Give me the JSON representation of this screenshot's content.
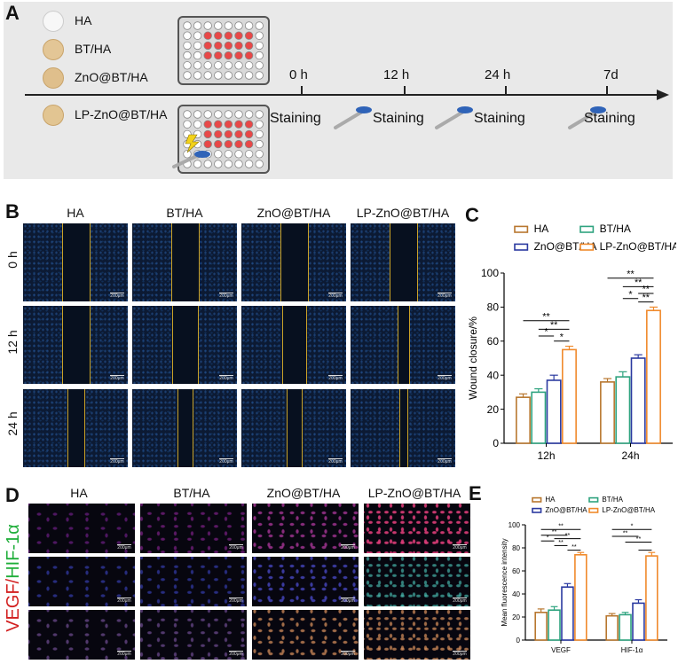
{
  "panel_letters": {
    "a": "A",
    "b": "B",
    "c": "C",
    "d": "D",
    "e": "E"
  },
  "panelA": {
    "materials": [
      {
        "label": "HA",
        "color": "#f4f4f4"
      },
      {
        "label": "BT/HA",
        "color": "#e6c99a"
      },
      {
        "label": "ZnO@BT/HA",
        "color": "#e2c392"
      },
      {
        "label": "LP-ZnO@BT/HA",
        "color": "#e5c898"
      }
    ],
    "timepoints": [
      "0 h",
      "12 h",
      "24 h",
      "7d"
    ],
    "staining": [
      "Staining",
      "Staining",
      "Staining",
      "Staining"
    ]
  },
  "panelB": {
    "columns": [
      "HA",
      "BT/HA",
      "ZnO@BT/HA",
      "LP-ZnO@BT/HA"
    ],
    "rows": [
      "0 h",
      "12 h",
      "24 h"
    ],
    "scale_label": "200μm"
  },
  "panelD": {
    "columns": [
      "HA",
      "BT/HA",
      "ZnO@BT/HA",
      "LP-ZnO@BT/HA"
    ],
    "side_label_red": "VEGF/",
    "side_label_green": "HIF-1α",
    "scale_label": "200μm"
  },
  "chart_data": [
    {
      "type": "bar",
      "panel": "C",
      "categories": [
        "12h",
        "24h"
      ],
      "series": [
        {
          "name": "HA",
          "values": [
            27,
            36
          ],
          "errors": [
            2,
            2
          ],
          "color": "#b8772f"
        },
        {
          "name": "BT/HA",
          "values": [
            30,
            39
          ],
          "errors": [
            2,
            3
          ],
          "color": "#2fa37f"
        },
        {
          "name": "ZnO@BT/HA",
          "values": [
            37,
            50
          ],
          "errors": [
            3,
            2
          ],
          "color": "#2b3aa0"
        },
        {
          "name": "LP-ZnO@BT/HA",
          "values": [
            55,
            78
          ],
          "errors": [
            2,
            2
          ],
          "color": "#f08a2c"
        }
      ],
      "ylabel": "Wound closure/%",
      "ylim": [
        0,
        100
      ],
      "yticks": [
        "0",
        "20",
        "40",
        "60",
        "80",
        "100"
      ],
      "legend_placement": "top",
      "significance": [
        "**",
        "**",
        "*",
        "*",
        "**",
        "**",
        "**",
        "*",
        "**"
      ]
    },
    {
      "type": "bar",
      "panel": "E",
      "categories": [
        "VEGF",
        "HIF-1α"
      ],
      "series": [
        {
          "name": "HA",
          "values": [
            24,
            21
          ],
          "errors": [
            3,
            2
          ],
          "color": "#b8772f"
        },
        {
          "name": "BT/HA",
          "values": [
            26,
            22
          ],
          "errors": [
            3,
            2
          ],
          "color": "#2fa37f"
        },
        {
          "name": "ZnO@BT/HA",
          "values": [
            46,
            32
          ],
          "errors": [
            3,
            3
          ],
          "color": "#2b3aa0"
        },
        {
          "name": "LP-ZnO@BT/HA",
          "values": [
            74,
            73
          ],
          "errors": [
            2,
            3
          ],
          "color": "#f08a2c"
        }
      ],
      "ylabel": "Mean fluorescence intensity",
      "ylim": [
        0,
        100
      ],
      "yticks": [
        "0",
        "20",
        "40",
        "60",
        "80",
        "100"
      ],
      "legend_placement": "top",
      "significance": [
        "**",
        "**",
        "*",
        "**",
        "**",
        "**",
        "*",
        "**",
        "**"
      ]
    }
  ]
}
